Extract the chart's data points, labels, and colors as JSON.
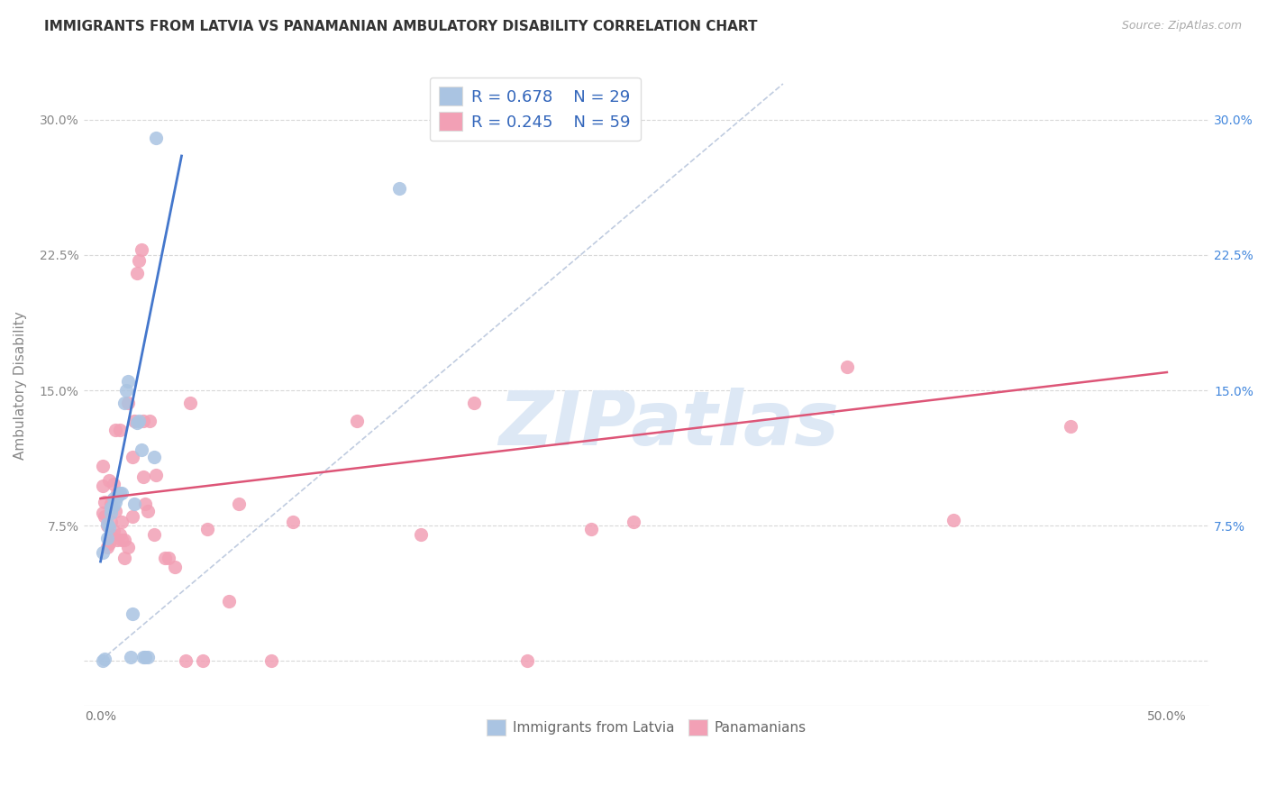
{
  "title": "IMMIGRANTS FROM LATVIA VS PANAMANIAN AMBULATORY DISABILITY CORRELATION CHART",
  "source": "Source: ZipAtlas.com",
  "ylabel": "Ambulatory Disability",
  "x_ticks": [
    0.0,
    0.1,
    0.2,
    0.3,
    0.4,
    0.5
  ],
  "x_tick_labels": [
    "0.0%",
    "",
    "",
    "",
    "",
    "50.0%"
  ],
  "y_ticks": [
    0.0,
    0.075,
    0.15,
    0.225,
    0.3
  ],
  "y_tick_labels_left": [
    "",
    "7.5%",
    "15.0%",
    "22.5%",
    "30.0%"
  ],
  "y_tick_labels_right": [
    "",
    "7.5%",
    "15.0%",
    "22.5%",
    "30.0%"
  ],
  "xlim": [
    -0.008,
    0.52
  ],
  "ylim": [
    -0.025,
    0.33
  ],
  "color_blue": "#aac4e2",
  "color_pink": "#f2a0b5",
  "line_blue": "#4477cc",
  "line_pink": "#dd5577",
  "dash_color": "#c0cce0",
  "scatter_blue_x": [
    0.001,
    0.001,
    0.002,
    0.003,
    0.003,
    0.004,
    0.005,
    0.005,
    0.006,
    0.006,
    0.007,
    0.008,
    0.009,
    0.01,
    0.011,
    0.012,
    0.013,
    0.014,
    0.015,
    0.016,
    0.017,
    0.018,
    0.019,
    0.02,
    0.021,
    0.022,
    0.025,
    0.026,
    0.14
  ],
  "scatter_blue_y": [
    0.06,
    0.0,
    0.001,
    0.068,
    0.076,
    0.074,
    0.082,
    0.085,
    0.086,
    0.09,
    0.088,
    0.091,
    0.093,
    0.093,
    0.143,
    0.15,
    0.155,
    0.002,
    0.026,
    0.087,
    0.132,
    0.133,
    0.117,
    0.002,
    0.002,
    0.002,
    0.113,
    0.29,
    0.262
  ],
  "scatter_pink_x": [
    0.001,
    0.001,
    0.001,
    0.002,
    0.002,
    0.003,
    0.003,
    0.004,
    0.004,
    0.005,
    0.005,
    0.005,
    0.006,
    0.006,
    0.007,
    0.007,
    0.008,
    0.008,
    0.009,
    0.009,
    0.01,
    0.01,
    0.011,
    0.011,
    0.013,
    0.013,
    0.015,
    0.015,
    0.016,
    0.017,
    0.018,
    0.019,
    0.02,
    0.02,
    0.021,
    0.022,
    0.023,
    0.025,
    0.026,
    0.03,
    0.032,
    0.035,
    0.04,
    0.042,
    0.048,
    0.05,
    0.06,
    0.065,
    0.08,
    0.09,
    0.12,
    0.15,
    0.175,
    0.2,
    0.23,
    0.25,
    0.35,
    0.4,
    0.455
  ],
  "scatter_pink_y": [
    0.082,
    0.097,
    0.108,
    0.08,
    0.088,
    0.063,
    0.075,
    0.065,
    0.1,
    0.07,
    0.077,
    0.087,
    0.072,
    0.098,
    0.083,
    0.128,
    0.067,
    0.093,
    0.07,
    0.128,
    0.067,
    0.077,
    0.057,
    0.067,
    0.143,
    0.063,
    0.08,
    0.113,
    0.133,
    0.215,
    0.222,
    0.228,
    0.102,
    0.133,
    0.087,
    0.083,
    0.133,
    0.07,
    0.103,
    0.057,
    0.057,
    0.052,
    0.0,
    0.143,
    0.0,
    0.073,
    0.033,
    0.087,
    0.0,
    0.077,
    0.133,
    0.07,
    0.143,
    0.0,
    0.073,
    0.077,
    0.163,
    0.078,
    0.13
  ],
  "blue_line_x": [
    0.0,
    0.038
  ],
  "blue_line_y_start": 0.055,
  "blue_line_y_end": 0.28,
  "pink_line_x": [
    0.0,
    0.5
  ],
  "pink_line_y_start": 0.09,
  "pink_line_y_end": 0.16,
  "dash_line_x": [
    0.0,
    0.32
  ],
  "watermark": "ZIPatlas",
  "background_color": "#ffffff",
  "grid_color": "#d8d8d8"
}
